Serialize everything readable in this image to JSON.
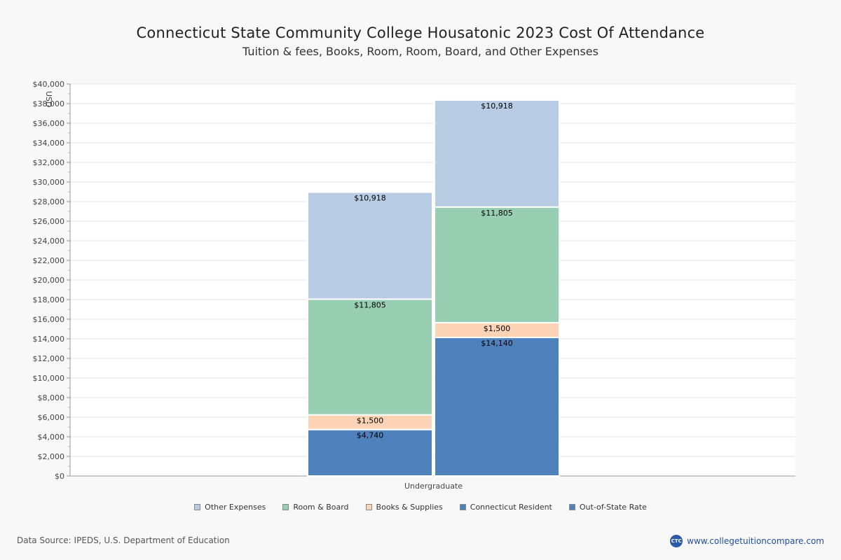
{
  "chart_data": {
    "type": "bar",
    "stacked": true,
    "title": "Connecticut State Community College Housatonic 2023 Cost Of Attendance",
    "subtitle": "Tuition & fees, Books, Room, Room, Board, and Other Expenses",
    "ylabel": "USD",
    "xlabel": "",
    "ylim": [
      0,
      40000
    ],
    "ytick_step": 2000,
    "y_ticks": [
      "$0",
      "$2,000",
      "$4,000",
      "$6,000",
      "$8,000",
      "$10,000",
      "$12,000",
      "$14,000",
      "$16,000",
      "$18,000",
      "$20,000",
      "$22,000",
      "$24,000",
      "$26,000",
      "$28,000",
      "$30,000",
      "$32,000",
      "$34,000",
      "$36,000",
      "$38,000",
      "$40,000"
    ],
    "categories": [
      "Undergraduate"
    ],
    "bars": [
      {
        "segments": [
          {
            "series": "Connecticut Resident",
            "value": 4740,
            "label": "$4,740"
          },
          {
            "series": "Books & Supplies",
            "value": 1500,
            "label": "$1,500"
          },
          {
            "series": "Room & Board",
            "value": 11805,
            "label": "$11,805"
          },
          {
            "series": "Other Expenses",
            "value": 10918,
            "label": "$10,918"
          }
        ]
      },
      {
        "segments": [
          {
            "series": "Out-of-State Rate",
            "value": 14140,
            "label": "$14,140"
          },
          {
            "series": "Books & Supplies",
            "value": 1500,
            "label": "$1,500"
          },
          {
            "series": "Room & Board",
            "value": 11805,
            "label": "$11,805"
          },
          {
            "series": "Other Expenses",
            "value": 10918,
            "label": "$10,918"
          }
        ]
      }
    ],
    "legend": [
      {
        "name": "Other Expenses",
        "color": "#b8cce4"
      },
      {
        "name": "Room & Board",
        "color": "#98cfb3"
      },
      {
        "name": "Books & Supplies",
        "color": "#fdd3b5"
      },
      {
        "name": "Connecticut Resident",
        "color": "#4f81bd"
      },
      {
        "name": "Out-of-State Rate",
        "color": "#4f81bd"
      }
    ],
    "legend_position": "bottom",
    "grid": true
  },
  "colors": {
    "Other Expenses": "#b8cce4",
    "Room & Board": "#98cfb3",
    "Books & Supplies": "#fdd3b5",
    "Connecticut Resident": "#4f81bd",
    "Out-of-State Rate": "#4f81bd"
  },
  "footer": {
    "source": "Data Source: IPEDS, U.S. Department of Education",
    "brand_logo": "CTC",
    "brand_url": "www.collegetuitioncompare.com"
  }
}
